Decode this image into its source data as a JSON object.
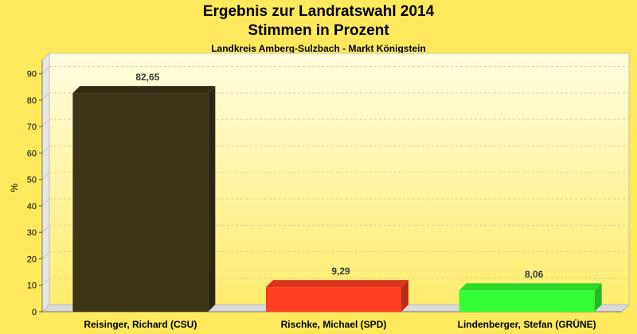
{
  "chart_data": {
    "type": "bar",
    "title": "Ergebnis zur Landratswahl 2014",
    "subtitle": "Stimmen in Prozent",
    "subsubtitle": "Landkreis Amberg-Sulzbach - Markt Königstein",
    "ylabel": "%",
    "xlabel": "",
    "ylim": [
      0,
      95
    ],
    "yticks": [
      0,
      10,
      20,
      30,
      40,
      50,
      60,
      70,
      80,
      90
    ],
    "grid": true,
    "categories": [
      "Reisinger, Richard (CSU)",
      "Rischke, Michael (SPD)",
      "Lindenberger, Stefan (GRÜNE)"
    ],
    "values": [
      82.65,
      9.29,
      8.06
    ],
    "value_labels": [
      "82,65",
      "9,29",
      "8,06"
    ],
    "colors": [
      "#3c3519",
      "#ff3e22",
      "#33ff33"
    ]
  }
}
